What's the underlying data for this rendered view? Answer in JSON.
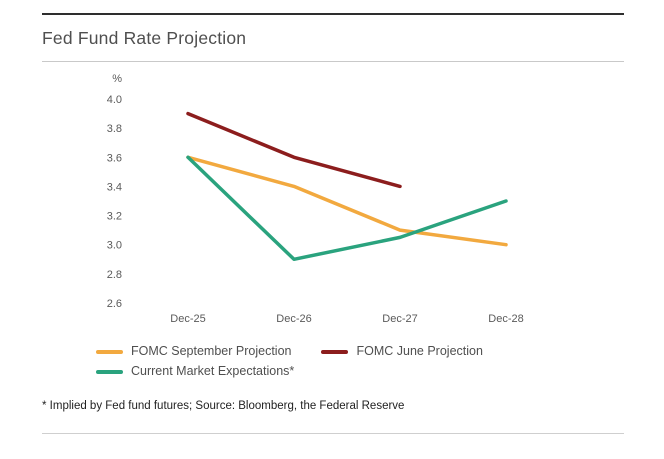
{
  "page": {
    "title": "Fed Fund Rate Projection",
    "footnote": "* Implied by Fed fund futures; Source: Bloomberg, the Federal Reserve"
  },
  "chart_data": {
    "type": "line",
    "title": "Fed Fund Rate Projection",
    "ylabel": "%",
    "xlabel": "",
    "ylim": [
      2.6,
      4.0
    ],
    "yticks": [
      4.0,
      3.8,
      3.6,
      3.4,
      3.2,
      3.0,
      2.8,
      2.6
    ],
    "categories": [
      "Dec-25",
      "Dec-26",
      "Dec-27",
      "Dec-28"
    ],
    "series": [
      {
        "name": "FOMC September Projection",
        "color": "#F2A93F",
        "values": [
          3.6,
          3.4,
          3.1,
          3.0
        ]
      },
      {
        "name": "FOMC June Projection",
        "color": "#8C1D1D",
        "values": [
          3.9,
          3.6,
          3.4,
          null
        ]
      },
      {
        "name": "Current Market Expectations*",
        "color": "#2AA37E",
        "values": [
          3.6,
          2.9,
          3.05,
          3.3
        ]
      }
    ],
    "grid": false,
    "legend_position": "bottom",
    "source_note": "* Implied by Fed fund futures; Source: Bloomberg, the Federal Reserve"
  }
}
